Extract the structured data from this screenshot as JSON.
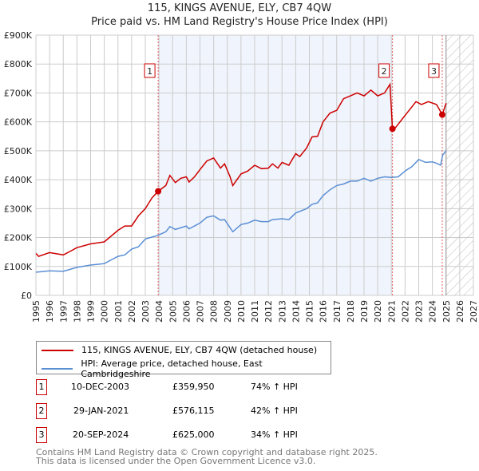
{
  "title": "115, KINGS AVENUE, ELY, CB7 4QW",
  "subtitle": "Price paid vs. HM Land Registry's House Price Index (HPI)",
  "chart_data": {
    "type": "line",
    "title": "115, KINGS AVENUE, ELY, CB7 4QW",
    "subtitle": "Price paid vs. HM Land Registry's House Price Index (HPI)",
    "xlim": [
      1995,
      2027
    ],
    "ylim": [
      0,
      900000
    ],
    "x_ticks": [
      "1995",
      "1996",
      "1997",
      "1998",
      "1999",
      "2000",
      "2001",
      "2002",
      "2003",
      "2004",
      "2005",
      "2006",
      "2007",
      "2008",
      "2009",
      "2010",
      "2011",
      "2012",
      "2013",
      "2014",
      "2015",
      "2016",
      "2017",
      "2018",
      "2019",
      "2020",
      "2021",
      "2022",
      "2023",
      "2024",
      "2025",
      "2026",
      "2027"
    ],
    "y_ticks": [
      "£0",
      "£100K",
      "£200K",
      "£300K",
      "£400K",
      "£500K",
      "£600K",
      "£700K",
      "£800K",
      "£900K"
    ],
    "grid": true,
    "shaded_span": [
      2003.94,
      2021.08
    ],
    "forecast_hatch_from": 2025.0,
    "series": [
      {
        "name": "115, KINGS AVENUE, ELY, CB7 4QW (detached house)",
        "color": "#cc0000",
        "x": [
          1995.0,
          1995.2,
          1996,
          1997,
          1997.5,
          1998,
          1999,
          2000,
          2001,
          2001.5,
          2002,
          2002.5,
          2003,
          2003.5,
          2003.94,
          2004.5,
          2004.8,
          2005.2,
          2005.6,
          2006,
          2006.2,
          2006.6,
          2007,
          2007.5,
          2008,
          2008.5,
          2008.8,
          2009.2,
          2009.4,
          2010,
          2010.5,
          2011,
          2011.5,
          2012,
          2012.3,
          2012.7,
          2013,
          2013.5,
          2014,
          2014.3,
          2014.8,
          2015.2,
          2015.6,
          2016,
          2016.5,
          2017,
          2017.5,
          2018,
          2018.5,
          2019,
          2019.5,
          2020,
          2020.5,
          2020.9,
          2021.08,
          2021.3,
          2021.8,
          2022.3,
          2022.8,
          2023.2,
          2023.7,
          2024.3,
          2024.72,
          2025.0
        ],
        "y": [
          145000,
          135000,
          148000,
          140000,
          152000,
          165000,
          178000,
          185000,
          225000,
          240000,
          240000,
          275000,
          300000,
          338000,
          359950,
          380000,
          415000,
          390000,
          405000,
          410000,
          392000,
          410000,
          435000,
          465000,
          475000,
          440000,
          455000,
          410000,
          380000,
          420000,
          430000,
          450000,
          438000,
          440000,
          455000,
          440000,
          460000,
          450000,
          490000,
          480000,
          510000,
          548000,
          550000,
          600000,
          630000,
          640000,
          680000,
          690000,
          700000,
          690000,
          710000,
          690000,
          700000,
          730000,
          576115,
          580000,
          610000,
          640000,
          670000,
          660000,
          670000,
          660000,
          625000,
          665000
        ]
      },
      {
        "name": "HPI: Average price, detached house, East Cambridgeshire",
        "color": "#5b8fd4",
        "x": [
          1995,
          1996,
          1997,
          1997.5,
          1998,
          1999,
          2000,
          2001,
          2001.5,
          2002,
          2002.5,
          2003,
          2003.94,
          2004.5,
          2004.8,
          2005.2,
          2006,
          2006.2,
          2007,
          2007.5,
          2008,
          2008.5,
          2008.8,
          2009.4,
          2010,
          2010.5,
          2011,
          2011.5,
          2012,
          2012.3,
          2013,
          2013.5,
          2014,
          2014.8,
          2015.2,
          2015.6,
          2016,
          2016.5,
          2017,
          2017.5,
          2018,
          2018.5,
          2019,
          2019.5,
          2020,
          2020.5,
          2021,
          2021.5,
          2022,
          2022.5,
          2023,
          2023.5,
          2024,
          2024.4,
          2024.6,
          2024.75,
          2025.0
        ],
        "y": [
          80000,
          85000,
          83000,
          90000,
          97000,
          105000,
          110000,
          135000,
          140000,
          160000,
          168000,
          195000,
          208000,
          220000,
          238000,
          228000,
          240000,
          230000,
          250000,
          270000,
          275000,
          260000,
          262000,
          220000,
          245000,
          250000,
          260000,
          255000,
          255000,
          262000,
          265000,
          262000,
          285000,
          300000,
          315000,
          320000,
          345000,
          365000,
          380000,
          385000,
          395000,
          395000,
          405000,
          395000,
          405000,
          410000,
          408000,
          410000,
          430000,
          445000,
          470000,
          460000,
          462000,
          455000,
          450000,
          485000,
          500000
        ]
      }
    ],
    "sales": [
      {
        "id": "1",
        "x": 2003.94,
        "y": 359950
      },
      {
        "id": "2",
        "x": 2021.08,
        "y": 576115
      },
      {
        "id": "3",
        "x": 2024.72,
        "y": 625000
      }
    ]
  },
  "legend": {
    "property": "115, KINGS AVENUE, ELY, CB7 4QW (detached house)",
    "hpi": "HPI: Average price, detached house, East Cambridgeshire"
  },
  "transactions": [
    {
      "id": "1",
      "date": "10-DEC-2003",
      "price": "£359,950",
      "hpi": "74% ↑ HPI"
    },
    {
      "id": "2",
      "date": "29-JAN-2021",
      "price": "£576,115",
      "hpi": "42% ↑ HPI"
    },
    {
      "id": "3",
      "date": "20-SEP-2024",
      "price": "£625,000",
      "hpi": "34% ↑ HPI"
    }
  ],
  "footer": {
    "line1": "Contains HM Land Registry data © Crown copyright and database right 2025.",
    "line2": "This data is licensed under the Open Government Licence v3.0."
  }
}
